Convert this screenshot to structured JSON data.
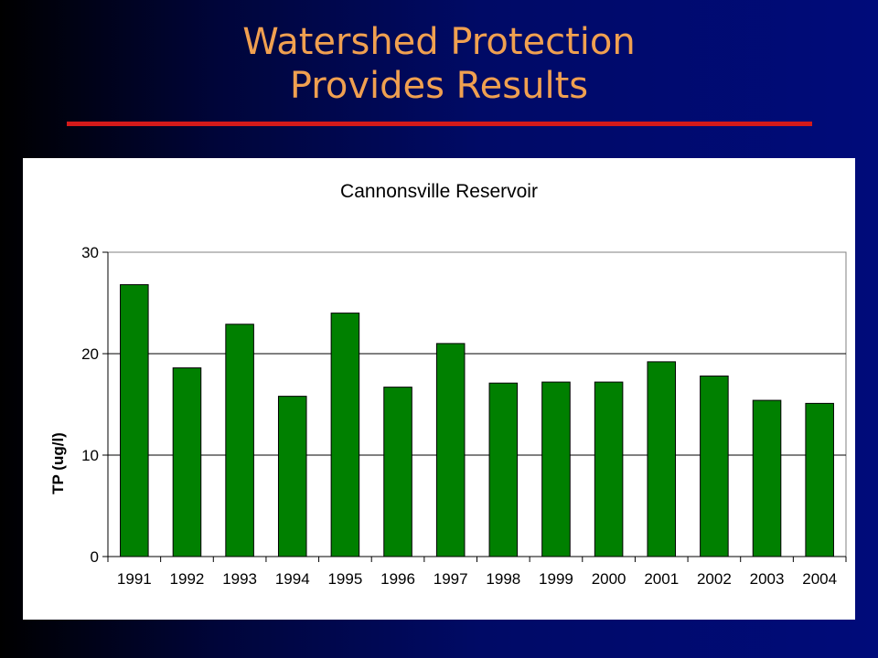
{
  "slide": {
    "title_line1": "Watershed Protection",
    "title_line2": "Provides Results",
    "title_color": "#f0a050",
    "rule_color": "#d41a1a"
  },
  "chart_data": {
    "type": "bar",
    "title": "Cannonsville Reservoir",
    "ylabel": "TP (ug/l)",
    "xlabel": "",
    "categories": [
      "1991",
      "1992",
      "1993",
      "1994",
      "1995",
      "1996",
      "1997",
      "1998",
      "1999",
      "2000",
      "2001",
      "2002",
      "2003",
      "2004"
    ],
    "values": [
      26.8,
      18.6,
      22.9,
      15.8,
      24.0,
      16.7,
      21.0,
      17.1,
      17.2,
      17.2,
      19.2,
      17.8,
      15.4,
      15.1
    ],
    "ylim": [
      0,
      30
    ],
    "yticks": [
      "0",
      "10",
      "20",
      "30"
    ],
    "grid": true,
    "legend": "none",
    "bar_color": "#008000"
  }
}
